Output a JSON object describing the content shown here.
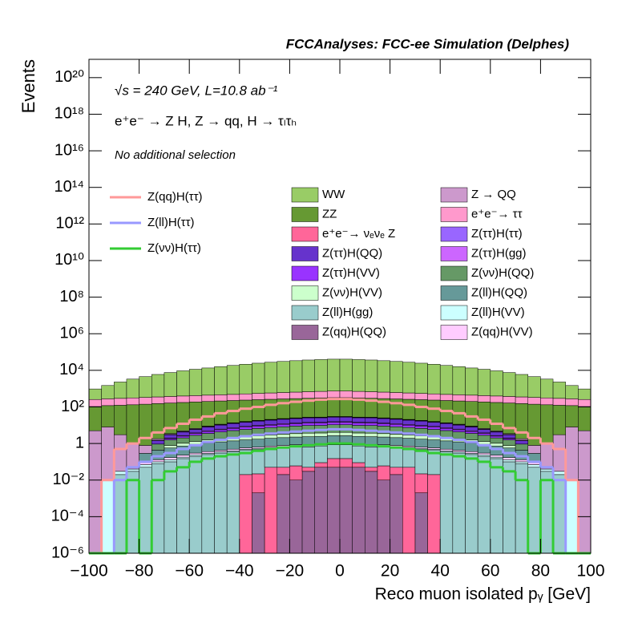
{
  "chart_data": {
    "type": "histogram",
    "stacked": true,
    "log_y": true,
    "title": "FCCAnalyses: FCC-ee Simulation (Delphes)",
    "annotations": [
      "√s = 240 GeV, L=10.8 ab⁻¹",
      "e⁺e⁻ → Z H, Z → qq, H → τₗτₕ",
      "No additional selection"
    ],
    "x_label": "Reco muon isolated pᵧ [GeV]",
    "y_label": "Events",
    "bins": [
      -100,
      -95,
      -90,
      -85,
      -80,
      -75,
      -70,
      -65,
      -60,
      -55,
      -50,
      -45,
      -40,
      -35,
      -30,
      -25,
      -20,
      -15,
      -10,
      -5,
      0,
      5,
      10,
      15,
      20,
      25,
      30,
      35,
      40,
      45,
      50,
      55,
      60,
      65,
      70,
      75,
      80,
      85,
      90,
      95,
      100
    ],
    "xlim": [
      -100,
      100
    ],
    "xticks": [
      {
        "value": -100,
        "label": "−100"
      },
      {
        "value": -80,
        "label": "−80"
      },
      {
        "value": -60,
        "label": "−60"
      },
      {
        "value": -40,
        "label": "−40"
      },
      {
        "value": -20,
        "label": "−20"
      },
      0,
      20,
      40,
      60,
      80,
      100
    ],
    "ylim": [
      1e-06,
      1e+21
    ],
    "yticks": [
      {
        "value": 1e-06,
        "label": "10⁻⁶"
      },
      {
        "value": 0.0001,
        "label": "10⁻⁴"
      },
      {
        "value": 0.01,
        "label": "10⁻²"
      },
      1,
      {
        "value": 100,
        "label": "10²"
      },
      {
        "value": 10000,
        "label": "10⁴"
      },
      {
        "value": 1000000.0,
        "label": "10⁶"
      },
      {
        "value": 100000000.0,
        "label": "10⁸"
      },
      {
        "value": 10000000000.0,
        "label": "10¹⁰"
      },
      {
        "value": 1000000000000.0,
        "label": "10¹²"
      },
      {
        "value": 100000000000000.0,
        "label": "10¹⁴"
      },
      {
        "value": 1e+16,
        "label": "10¹⁶"
      },
      {
        "value": 1e+18,
        "label": "10¹⁸"
      },
      {
        "value": 1e+20,
        "label": "10²⁰"
      }
    ],
    "series": [
      {
        "name": "Z(qq)H(QQ)",
        "color": "#996699",
        "stack": true,
        "values": [
          0,
          0,
          0,
          0,
          0,
          0,
          0,
          0,
          0,
          0,
          0,
          0,
          0,
          0.002,
          0,
          0.02,
          0.01,
          0.03,
          0.05,
          0.05,
          0.05,
          0.05,
          0.03,
          0.01,
          0.02,
          0,
          0.002,
          0,
          0,
          0,
          0,
          0,
          0,
          0,
          0,
          0,
          0,
          0,
          0,
          0
        ]
      },
      {
        "name": "e⁺e⁻→ νₑνₑ Z",
        "color": "#ff6699",
        "stack": true,
        "values": [
          0,
          0,
          0,
          0,
          0,
          0,
          0,
          0,
          0,
          0,
          0,
          0,
          0.02,
          0.02,
          0.05,
          0.03,
          0.05,
          0.02,
          0.04,
          0.1,
          0.1,
          0.04,
          0.02,
          0.05,
          0.03,
          0.05,
          0.02,
          0.02,
          0,
          0,
          0,
          0,
          0,
          0,
          0,
          0,
          0,
          0,
          0,
          0
        ]
      },
      {
        "name": "Z(ll)H(gg)",
        "color": "#99cccc",
        "stack": true,
        "values": [
          0,
          0,
          0.02,
          0.03,
          0.05,
          0.08,
          0.1,
          0.15,
          0.2,
          0.25,
          0.3,
          0.35,
          0.4,
          0.45,
          0.5,
          0.55,
          0.6,
          0.6,
          0.65,
          0.7,
          0.7,
          0.65,
          0.6,
          0.6,
          0.55,
          0.5,
          0.45,
          0.4,
          0.35,
          0.3,
          0.25,
          0.2,
          0.15,
          0.1,
          0.08,
          0.05,
          0.03,
          0.02,
          0,
          0
        ]
      },
      {
        "name": "Z(ll)H(VV)",
        "color": "#ccffff",
        "stack": true,
        "values": [
          0,
          0.01,
          0.01,
          0.01,
          0.02,
          0.02,
          0.03,
          0.03,
          0.04,
          0.04,
          0.05,
          0.05,
          0.06,
          0.06,
          0.07,
          0.07,
          0.08,
          0.08,
          0.08,
          0.08,
          0.08,
          0.08,
          0.08,
          0.08,
          0.07,
          0.07,
          0.06,
          0.06,
          0.05,
          0.05,
          0.04,
          0.04,
          0.03,
          0.03,
          0.02,
          0.02,
          0.01,
          0.01,
          0.01,
          0
        ]
      },
      {
        "name": "Z(qq)H(VV)",
        "color": "#ffccff",
        "stack": true,
        "values": [
          0,
          0,
          0,
          0,
          0.02,
          0.03,
          0.04,
          0.05,
          0.06,
          0.07,
          0.08,
          0.09,
          0.1,
          0.1,
          0.11,
          0.12,
          0.12,
          0.13,
          0.13,
          0.14,
          0.14,
          0.13,
          0.13,
          0.12,
          0.12,
          0.11,
          0.1,
          0.1,
          0.09,
          0.08,
          0.07,
          0.06,
          0.05,
          0.04,
          0.03,
          0.02,
          0,
          0,
          0,
          0
        ]
      },
      {
        "name": "Z(ll)H(QQ)",
        "color": "#669999",
        "stack": true,
        "values": [
          0,
          0,
          0,
          0,
          0.2,
          0.3,
          0.4,
          0.5,
          0.6,
          0.7,
          0.8,
          0.9,
          1,
          1.1,
          1.2,
          1.3,
          1.4,
          1.5,
          1.5,
          1.6,
          1.6,
          1.5,
          1.5,
          1.4,
          1.3,
          1.2,
          1.1,
          1,
          0.9,
          0.8,
          0.7,
          0.6,
          0.5,
          0.4,
          0.3,
          0.2,
          0,
          0,
          0,
          0
        ]
      },
      {
        "name": "Z(νν)H(VV)",
        "color": "#ccffcc",
        "stack": true,
        "values": [
          0,
          0,
          0,
          0,
          0,
          0,
          0.2,
          0.3,
          0.4,
          0.5,
          0.6,
          0.7,
          0.8,
          0.9,
          1,
          1.1,
          1.2,
          1.3,
          1.3,
          1.4,
          1.4,
          1.3,
          1.3,
          1.2,
          1.1,
          1,
          0.9,
          0.8,
          0.7,
          0.6,
          0.5,
          0.4,
          0.3,
          0.2,
          0,
          0,
          0,
          0,
          0,
          0
        ]
      },
      {
        "name": "Z(νν)H(QQ)",
        "color": "#669966",
        "stack": true,
        "values": [
          0,
          0,
          0,
          0,
          0,
          0.5,
          0.8,
          1,
          1.5,
          2,
          2.5,
          3,
          3.5,
          4,
          4.5,
          5,
          5.5,
          6,
          6,
          6.5,
          6.5,
          6,
          6,
          5.5,
          5,
          4.5,
          4,
          3.5,
          3,
          2.5,
          2,
          1.5,
          1,
          0.8,
          0.5,
          0,
          0,
          0,
          0,
          0
        ]
      },
      {
        "name": "Z(ττ)H(VV)",
        "color": "#9933ff",
        "stack": true,
        "values": [
          0,
          0,
          0,
          0,
          0,
          0,
          0.3,
          0.5,
          0.7,
          1,
          1.3,
          1.6,
          2,
          2.3,
          2.6,
          3,
          3.2,
          3.4,
          3.6,
          3.8,
          3.8,
          3.6,
          3.4,
          3.2,
          3,
          2.6,
          2.3,
          2,
          1.6,
          1.3,
          1,
          0.7,
          0.5,
          0.3,
          0,
          0,
          0,
          0,
          0,
          0
        ]
      },
      {
        "name": "Z(ττ)H(gg)",
        "color": "#cc66ff",
        "stack": true,
        "values": [
          0,
          0,
          0,
          0,
          0,
          0,
          0.1,
          0.2,
          0.3,
          0.4,
          0.5,
          0.6,
          0.7,
          0.8,
          0.9,
          1,
          1,
          1.1,
          1.1,
          1.2,
          1.2,
          1.1,
          1.1,
          1,
          1,
          0.9,
          0.8,
          0.7,
          0.6,
          0.5,
          0.4,
          0.3,
          0.2,
          0.1,
          0,
          0,
          0,
          0,
          0,
          0
        ]
      },
      {
        "name": "Z(ττ)H(QQ)",
        "color": "#6633cc",
        "stack": true,
        "values": [
          0,
          0,
          0,
          0,
          0,
          0.5,
          1,
          1.5,
          2,
          3,
          4,
          5,
          6,
          7,
          8,
          9,
          10,
          11,
          11,
          12,
          12,
          11,
          11,
          10,
          9,
          8,
          7,
          6,
          5,
          4,
          3,
          2,
          1.5,
          1,
          0.5,
          0,
          0,
          0,
          0,
          0
        ]
      },
      {
        "name": "Z(ττ)H(ττ)",
        "color": "#9966ff",
        "stack": true,
        "values": [
          0,
          0,
          0,
          0,
          0,
          0.1,
          0.2,
          0.3,
          0.4,
          0.5,
          0.6,
          0.7,
          0.8,
          0.9,
          1,
          1.1,
          1.2,
          1.3,
          1.3,
          1.4,
          1.4,
          1.3,
          1.3,
          1.2,
          1.1,
          1,
          0.9,
          0.8,
          0.7,
          0.6,
          0.5,
          0.4,
          0.3,
          0.2,
          0.1,
          0,
          0,
          0,
          0,
          0
        ]
      },
      {
        "name": "Z → QQ",
        "color": "#cc99cc",
        "stack": true,
        "values": [
          5,
          8,
          3,
          1,
          0.5,
          0.3,
          0.3,
          0.4,
          0.5,
          0.5,
          0.6,
          0.6,
          0.7,
          0.7,
          0.8,
          0.8,
          0.8,
          0.9,
          0.9,
          0.9,
          0.9,
          0.9,
          0.9,
          0.8,
          0.8,
          0.8,
          0.7,
          0.7,
          0.6,
          0.6,
          0.5,
          0.5,
          0.4,
          0.3,
          0.3,
          0.5,
          1,
          3,
          8,
          5
        ]
      },
      {
        "name": "ZZ",
        "color": "#669933",
        "stack": true,
        "values": [
          100,
          110,
          120,
          130,
          140,
          150,
          160,
          170,
          180,
          190,
          200,
          210,
          220,
          230,
          240,
          250,
          260,
          270,
          280,
          290,
          290,
          280,
          270,
          260,
          250,
          240,
          230,
          220,
          210,
          200,
          190,
          180,
          170,
          160,
          150,
          140,
          130,
          120,
          110,
          100
        ]
      },
      {
        "name": "e⁺e⁻→ ττ",
        "color": "#ff99cc",
        "stack": true,
        "values": [
          150,
          160,
          170,
          180,
          190,
          200,
          210,
          220,
          230,
          240,
          250,
          260,
          280,
          300,
          320,
          340,
          360,
          380,
          400,
          420,
          420,
          400,
          380,
          360,
          340,
          320,
          300,
          280,
          260,
          250,
          240,
          230,
          220,
          210,
          200,
          190,
          180,
          170,
          160,
          150
        ]
      },
      {
        "name": "WW",
        "color": "#99cc66",
        "stack": true,
        "values": [
          700,
          1200,
          2000,
          3000,
          4200,
          5600,
          7200,
          9000,
          11000,
          13000,
          15500,
          18000,
          21000,
          24000,
          27000,
          30000,
          33000,
          36000,
          38000,
          40000,
          40000,
          38000,
          36000,
          33000,
          30000,
          27000,
          24000,
          21000,
          18000,
          15500,
          13000,
          11000,
          9000,
          7200,
          5600,
          4200,
          3000,
          2000,
          1200,
          700
        ]
      },
      {
        "name": "Z(qq)H(ττ)",
        "color": "#ff9999",
        "stack": false,
        "values": [
          0,
          0.01,
          0.5,
          1,
          2,
          4,
          7,
          12,
          20,
          30,
          45,
          60,
          80,
          100,
          130,
          160,
          190,
          220,
          250,
          270,
          270,
          250,
          220,
          190,
          160,
          130,
          100,
          80,
          60,
          45,
          30,
          20,
          12,
          7,
          4,
          2,
          1,
          0.5,
          0.01,
          0
        ]
      },
      {
        "name": "Z(ll)H(ττ)",
        "color": "#9999ff",
        "stack": false,
        "values": [
          0,
          0,
          0.01,
          0.05,
          0.1,
          0.2,
          0.3,
          0.5,
          0.8,
          1.2,
          1.6,
          2,
          2.5,
          3,
          3.5,
          4,
          4.5,
          5,
          5.5,
          6,
          6,
          5.5,
          5,
          4.5,
          4,
          3.5,
          3,
          2.5,
          2,
          1.6,
          1.2,
          0.8,
          0.5,
          0.3,
          0.2,
          0.1,
          0.05,
          0.01,
          0,
          0
        ]
      },
      {
        "name": "Z(νν)H(ττ)",
        "color": "#33cc33",
        "stack": false,
        "values": [
          0,
          0,
          0,
          0.01,
          0,
          0.01,
          0.03,
          0.05,
          0.1,
          0.15,
          0.2,
          0.25,
          0.3,
          0.4,
          0.5,
          0.6,
          0.7,
          0.8,
          0.9,
          1,
          1,
          0.9,
          0.8,
          0.7,
          0.6,
          0.5,
          0.4,
          0.3,
          0.25,
          0.2,
          0.15,
          0.1,
          0.05,
          0.03,
          0.01,
          0,
          0.01,
          0,
          0,
          0
        ]
      }
    ]
  }
}
